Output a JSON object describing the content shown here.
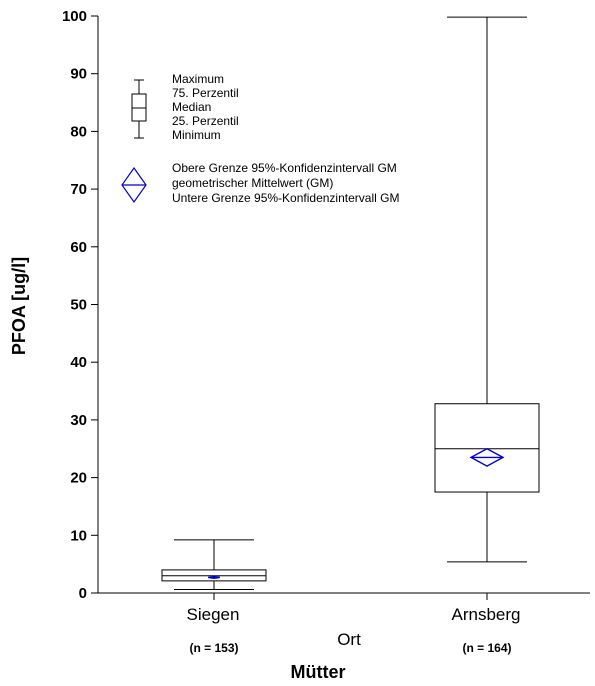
{
  "chart_data": {
    "type": "boxplot",
    "ylabel": "PFOA [ug/l]",
    "xlabel": "Ort",
    "group_label": "Mütter",
    "ylim": [
      0,
      100
    ],
    "yticks": [
      0,
      10,
      20,
      30,
      40,
      50,
      60,
      70,
      80,
      90,
      100
    ],
    "categories": [
      "Siegen",
      "Arnsberg"
    ],
    "n_labels": [
      "(n = 153)",
      "(n = 164)"
    ],
    "boxes": [
      {
        "min": 0.6,
        "q1": 2.1,
        "median": 3.0,
        "q3": 4.0,
        "max": 9.2,
        "gm": 2.7,
        "gm_ci_lower": 2.55,
        "gm_ci_upper": 2.85
      },
      {
        "min": 5.4,
        "q1": 17.5,
        "median": 25.0,
        "q3": 32.8,
        "max": 99.8,
        "gm": 23.5,
        "gm_ci_lower": 22.0,
        "gm_ci_upper": 25.0
      }
    ],
    "colors": {
      "box": "#000000",
      "gm_marker": "#0000cc"
    },
    "grid": false,
    "legend_position": "top-left",
    "legend": {
      "box_items": [
        "Maximum",
        "75. Perzentil",
        "Median",
        "25. Perzentil",
        "Minimum"
      ],
      "gm_items": [
        "Obere Grenze 95%-Konfidenzintervall GM",
        "geometrischer Mittelwert (GM)",
        "Untere Grenze 95%-Konfidenzintervall GM"
      ]
    }
  }
}
